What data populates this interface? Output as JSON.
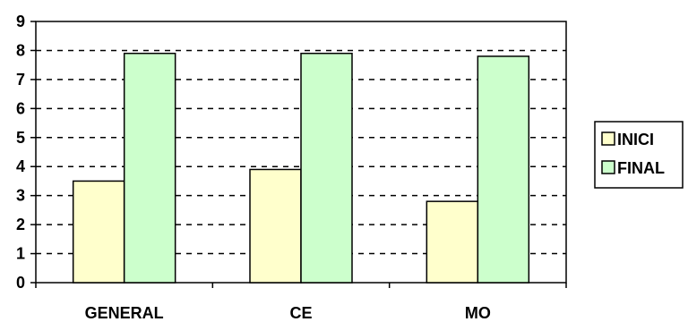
{
  "chart_data": {
    "type": "bar",
    "title": "",
    "xlabel": "",
    "ylabel": "",
    "categories": [
      "GENERAL",
      "CE",
      "MO"
    ],
    "series": [
      {
        "name": "INICI",
        "values": [
          3.5,
          3.9,
          2.8
        ],
        "color": "#FFFFCC"
      },
      {
        "name": "FINAL",
        "values": [
          7.9,
          7.9,
          7.8
        ],
        "color": "#CCFFCC"
      }
    ],
    "ylim": [
      0,
      9
    ],
    "yticks": [
      "0",
      "1",
      "2",
      "3",
      "4",
      "5",
      "6",
      "7",
      "8",
      "9"
    ],
    "grid": "dashed-horizontal",
    "legend_position": "right"
  }
}
